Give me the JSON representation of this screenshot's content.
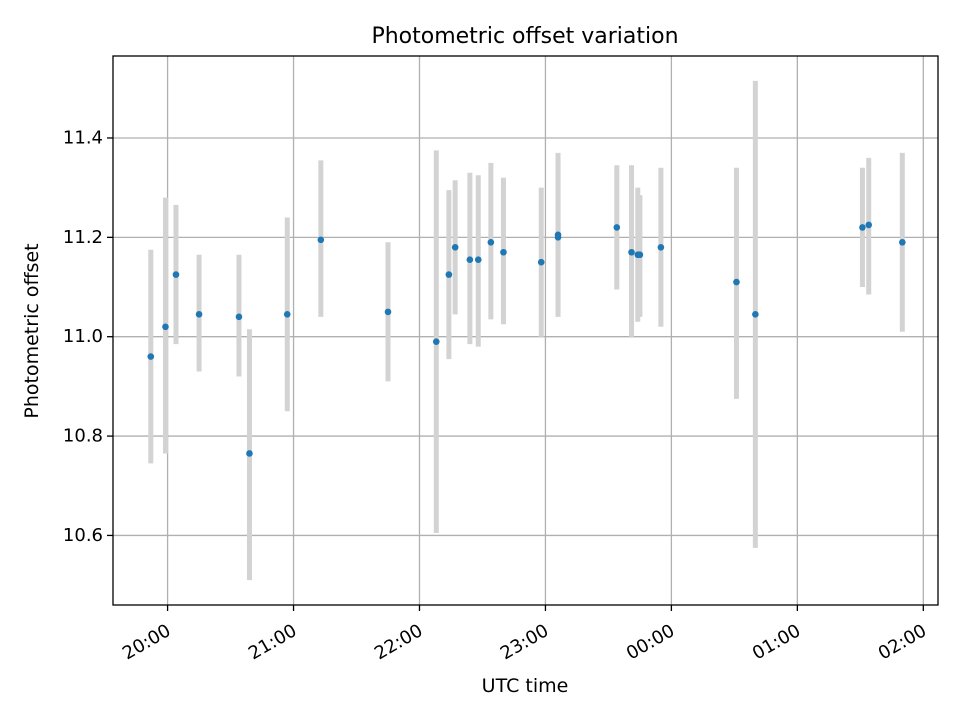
{
  "chart_data": {
    "type": "scatter",
    "title": "Photometric offset variation",
    "xlabel": "UTC time",
    "ylabel": "Photometric offset",
    "grid": true,
    "x_ticks": [
      {
        "t": "20:00",
        "label": "20:00"
      },
      {
        "t": "21:00",
        "label": "21:00"
      },
      {
        "t": "22:00",
        "label": "22:00"
      },
      {
        "t": "23:00",
        "label": "23:00"
      },
      {
        "t": "00:00",
        "label": "00:00"
      },
      {
        "t": "01:00",
        "label": "01:00"
      },
      {
        "t": "02:00",
        "label": "02:00"
      }
    ],
    "y_ticks": [
      {
        "v": 10.6,
        "label": "10.6"
      },
      {
        "v": 10.8,
        "label": "10.8"
      },
      {
        "v": 11.0,
        "label": "11.0"
      },
      {
        "v": 11.2,
        "label": "11.2"
      },
      {
        "v": 11.4,
        "label": "11.4"
      }
    ],
    "xlim": [
      "19:34",
      "02:07"
    ],
    "ylim": [
      10.46,
      11.565
    ],
    "point_color": "#1f77b4",
    "errorbar_color": "#d3d3d3",
    "points": [
      {
        "t": "19:52",
        "y": 10.96,
        "lo": 10.745,
        "hi": 11.175
      },
      {
        "t": "19:59",
        "y": 11.02,
        "lo": 10.765,
        "hi": 11.28
      },
      {
        "t": "20:04",
        "y": 11.125,
        "lo": 10.985,
        "hi": 11.265
      },
      {
        "t": "20:15",
        "y": 11.045,
        "lo": 10.93,
        "hi": 11.165
      },
      {
        "t": "20:34",
        "y": 11.04,
        "lo": 10.92,
        "hi": 11.165
      },
      {
        "t": "20:39",
        "y": 10.765,
        "lo": 10.51,
        "hi": 11.015
      },
      {
        "t": "20:57",
        "y": 11.045,
        "lo": 10.85,
        "hi": 11.24
      },
      {
        "t": "21:13",
        "y": 11.195,
        "lo": 11.04,
        "hi": 11.355
      },
      {
        "t": "21:45",
        "y": 11.05,
        "lo": 10.91,
        "hi": 11.19
      },
      {
        "t": "22:08",
        "y": 10.99,
        "lo": 10.605,
        "hi": 11.375
      },
      {
        "t": "22:14",
        "y": 11.125,
        "lo": 10.955,
        "hi": 11.295
      },
      {
        "t": "22:17",
        "y": 11.18,
        "lo": 11.045,
        "hi": 11.315
      },
      {
        "t": "22:24",
        "y": 11.155,
        "lo": 10.985,
        "hi": 11.33
      },
      {
        "t": "22:28",
        "y": 11.155,
        "lo": 10.98,
        "hi": 11.325
      },
      {
        "t": "22:34",
        "y": 11.19,
        "lo": 11.035,
        "hi": 11.35
      },
      {
        "t": "22:40",
        "y": 11.17,
        "lo": 11.025,
        "hi": 11.32
      },
      {
        "t": "22:58",
        "y": 11.15,
        "lo": 11.0,
        "hi": 11.3
      },
      {
        "t": "23:06",
        "y": 11.205,
        "lo": 11.04,
        "hi": 11.37
      },
      {
        "t": "23:06",
        "y": 11.2,
        "lo": 11.045,
        "hi": 11.36
      },
      {
        "t": "23:34",
        "y": 11.22,
        "lo": 11.095,
        "hi": 11.345
      },
      {
        "t": "23:41",
        "y": 11.17,
        "lo": 11.0,
        "hi": 11.345
      },
      {
        "t": "23:44",
        "y": 11.165,
        "lo": 11.03,
        "hi": 11.3
      },
      {
        "t": "23:45",
        "y": 11.165,
        "lo": 11.04,
        "hi": 11.285
      },
      {
        "t": "23:55",
        "y": 11.18,
        "lo": 11.02,
        "hi": 11.34
      },
      {
        "t": "00:31",
        "y": 11.11,
        "lo": 10.875,
        "hi": 11.34
      },
      {
        "t": "00:40",
        "y": 11.045,
        "lo": 10.575,
        "hi": 11.515
      },
      {
        "t": "01:31",
        "y": 11.22,
        "lo": 11.1,
        "hi": 11.34
      },
      {
        "t": "01:34",
        "y": 11.225,
        "lo": 11.085,
        "hi": 11.36
      },
      {
        "t": "01:50",
        "y": 11.19,
        "lo": 11.01,
        "hi": 11.37
      }
    ]
  }
}
